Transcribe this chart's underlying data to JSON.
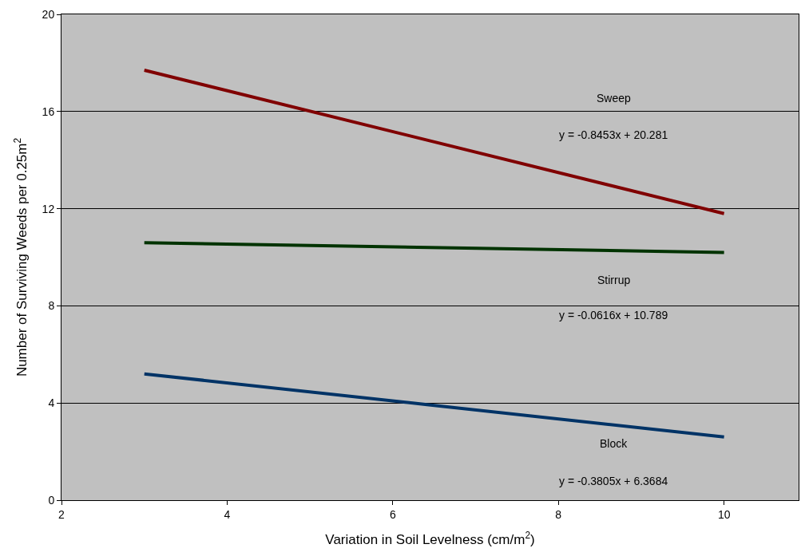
{
  "chart_data": {
    "type": "line",
    "xlabel": "Variation in Soil Levelness (cm/m$^{2}$)",
    "ylabel": "Number of Surviving Weeds per 0.25m$^{2}$",
    "x": [
      3,
      10
    ],
    "series": [
      {
        "color": "#800000",
        "values": [
          17.7,
          11.8
        ]
      },
      {
        "color": "#003300",
        "values": [
          10.6,
          10.2
        ]
      },
      {
        "color": "#003366",
        "values": [
          5.2,
          2.6
        ]
      }
    ],
    "xlim": [
      2,
      10.9
    ],
    "xticks": [
      2,
      4,
      6,
      8,
      10
    ],
    "ylim": [
      0,
      20
    ],
    "yticks": [
      0,
      4,
      8,
      12,
      16,
      20
    ],
    "grid": "y",
    "marker": "none",
    "line_style": "solid",
    "annotations": [
      "Sweep",
      "y = -0.8453x + 20.281",
      "Stirrup",
      "y = -0.0616x + 10.789",
      "Block",
      "y = -0.3805x + 6.3684"
    ]
  }
}
